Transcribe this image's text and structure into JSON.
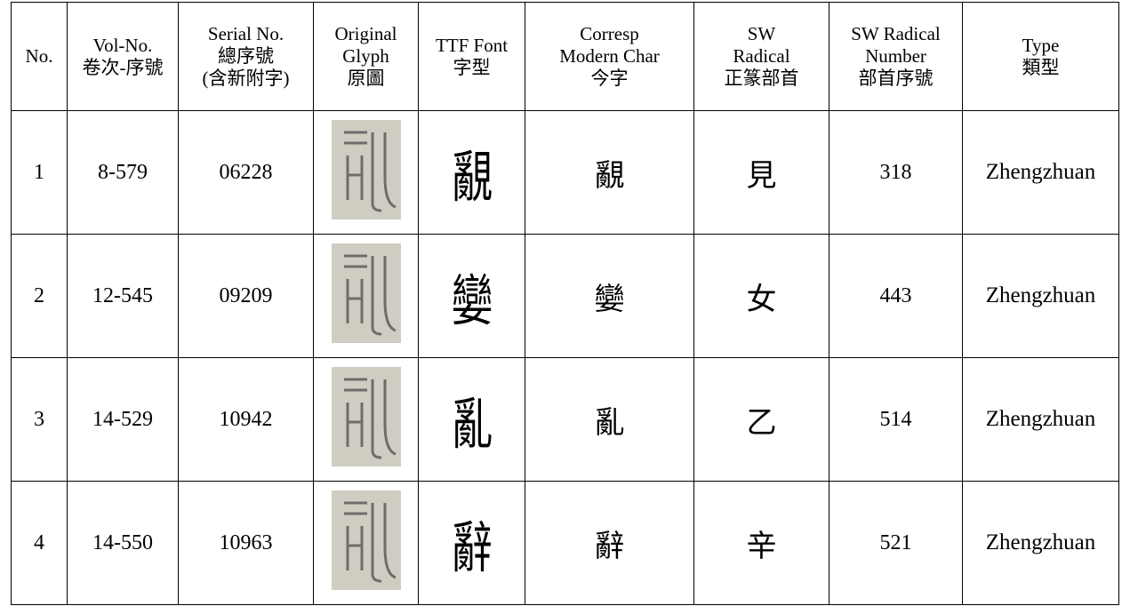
{
  "table": {
    "header": [
      [
        "No."
      ],
      [
        "Vol-No.",
        "卷次-序號"
      ],
      [
        "Serial No.",
        "總序號",
        "(含新附字)"
      ],
      [
        "Original",
        "Glyph",
        "原圖"
      ],
      [
        "TTF Font",
        "字型"
      ],
      [
        "Corresp",
        "Modern Char",
        "今字"
      ],
      [
        "SW",
        "Radical",
        "正篆部首"
      ],
      [
        "SW Radical",
        "Number",
        "部首序號"
      ],
      [
        "Type",
        "類型"
      ]
    ],
    "rows": [
      {
        "no": "1",
        "vol": "8-579",
        "serial": "06228",
        "modern": "覶",
        "radical": "見",
        "radical_number": "318",
        "type": "Zhengzhuan"
      },
      {
        "no": "2",
        "vol": "12-545",
        "serial": "09209",
        "modern": "孌",
        "radical": "女",
        "radical_number": "443",
        "type": "Zhengzhuan"
      },
      {
        "no": "3",
        "vol": "14-529",
        "serial": "10942",
        "modern": "亂",
        "radical": "乙",
        "radical_number": "514",
        "type": "Zhengzhuan"
      },
      {
        "no": "4",
        "vol": "14-550",
        "serial": "10963",
        "modern": "辭",
        "radical": "辛",
        "radical_number": "521",
        "type": "Zhengzhuan"
      }
    ]
  }
}
